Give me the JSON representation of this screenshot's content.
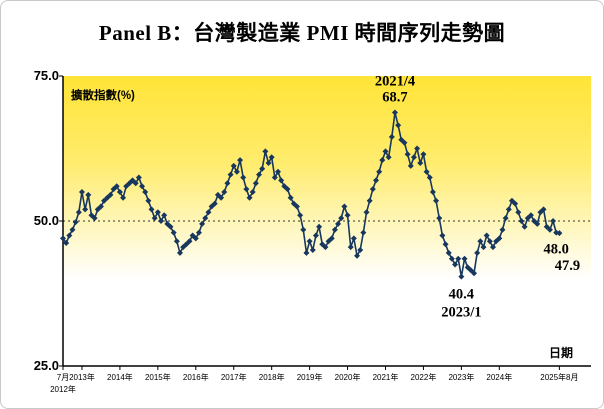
{
  "title": "Panel B：台灣製造業 PMI 時間序列走勢圖",
  "chart": {
    "y_axis_label_inside": "擴散指數(%)",
    "x_axis_label": "日期",
    "y_ticks": [
      "75.0",
      "50.0",
      "25.0"
    ]
  },
  "chart_data": {
    "type": "line",
    "title": "Panel B：台灣製造業 PMI 時間序列走勢圖",
    "ylabel": "擴散指數(%)",
    "xlabel": "日期",
    "ylim": [
      25,
      75
    ],
    "reference_line": 50,
    "frequency": "monthly",
    "start": "2012-07",
    "end": "2025-08",
    "line_color": "#17375E",
    "marker": "diamond",
    "plot_bg_gradient": [
      [
        "0%",
        "#FFE437"
      ],
      [
        "30%",
        "#FFEC6E"
      ],
      [
        "70%",
        "#FFFFFF"
      ],
      [
        "100%",
        "#FFFFFF"
      ]
    ],
    "values": [
      47.0,
      46.2,
      47.5,
      48.5,
      49.8,
      51.5,
      55.0,
      52.0,
      54.5,
      51.0,
      50.5,
      52.0,
      52.5,
      53.5,
      54.0,
      54.5,
      55.5,
      56.0,
      55.0,
      54.0,
      56.0,
      56.5,
      57.0,
      56.5,
      57.5,
      56.0,
      55.0,
      53.5,
      52.0,
      50.5,
      51.5,
      50.0,
      51.0,
      49.5,
      49.0,
      48.0,
      46.5,
      44.5,
      45.5,
      46.0,
      46.5,
      47.5,
      47.0,
      48.0,
      49.5,
      50.5,
      51.5,
      52.5,
      53.0,
      54.5,
      54.0,
      55.0,
      56.5,
      58.0,
      59.5,
      58.5,
      60.5,
      57.5,
      55.5,
      54.0,
      55.0,
      56.5,
      58.0,
      59.0,
      62.0,
      60.0,
      61.0,
      57.5,
      58.5,
      57.0,
      56.0,
      55.5,
      54.0,
      53.0,
      52.5,
      51.0,
      48.5,
      44.5,
      46.5,
      45.0,
      47.5,
      49.0,
      46.0,
      45.5,
      46.5,
      47.0,
      48.5,
      49.5,
      50.5,
      52.5,
      51.0,
      45.5,
      47.0,
      44.0,
      45.0,
      48.0,
      51.5,
      53.5,
      55.5,
      57.0,
      58.5,
      60.5,
      62.0,
      61.0,
      64.5,
      68.7,
      66.5,
      64.0,
      63.5,
      61.5,
      59.5,
      61.0,
      62.5,
      60.0,
      61.5,
      58.5,
      57.5,
      55.0,
      53.5,
      50.5,
      47.5,
      46.0,
      44.5,
      43.5,
      42.5,
      43.5,
      40.4,
      43.5,
      42.0,
      41.5,
      41.0,
      44.5,
      46.5,
      45.5,
      47.5,
      46.5,
      45.5,
      46.5,
      47.0,
      48.5,
      50.5,
      52.0,
      53.5,
      53.0,
      51.5,
      50.0,
      49.0,
      50.5,
      51.0,
      50.0,
      49.5,
      51.5,
      52.0,
      49.0,
      48.5,
      50.0,
      48.0,
      47.9
    ],
    "x_ticks": [
      {
        "i": 0,
        "label": "7月",
        "label2": "2012年"
      },
      {
        "i": 6,
        "label": "2013年"
      },
      {
        "i": 18,
        "label": "2014年"
      },
      {
        "i": 30,
        "label": "2015年"
      },
      {
        "i": 42,
        "label": "2016年"
      },
      {
        "i": 54,
        "label": "2017年"
      },
      {
        "i": 66,
        "label": "2018年"
      },
      {
        "i": 78,
        "label": "2019年"
      },
      {
        "i": 90,
        "label": "2020年"
      },
      {
        "i": 102,
        "label": "2021年"
      },
      {
        "i": 114,
        "label": "2022年"
      },
      {
        "i": 126,
        "label": "2023年"
      },
      {
        "i": 138,
        "label": "2024年"
      },
      {
        "i": 157,
        "label": "2025年8月"
      }
    ],
    "annotations": [
      {
        "text": "2021/4",
        "index": 105,
        "value": 68.7,
        "pos": "above2"
      },
      {
        "text": "68.7",
        "index": 105,
        "value": 68.7,
        "pos": "above1"
      },
      {
        "text": "40.4",
        "index": 126,
        "value": 40.4,
        "pos": "below1"
      },
      {
        "text": "2023/1",
        "index": 126,
        "value": 40.4,
        "pos": "below2"
      },
      {
        "text": "48.0",
        "index": 156,
        "value": 48.0,
        "pos": "end1"
      },
      {
        "text": "47.9",
        "index": 157,
        "value": 47.9,
        "pos": "end2"
      }
    ]
  }
}
